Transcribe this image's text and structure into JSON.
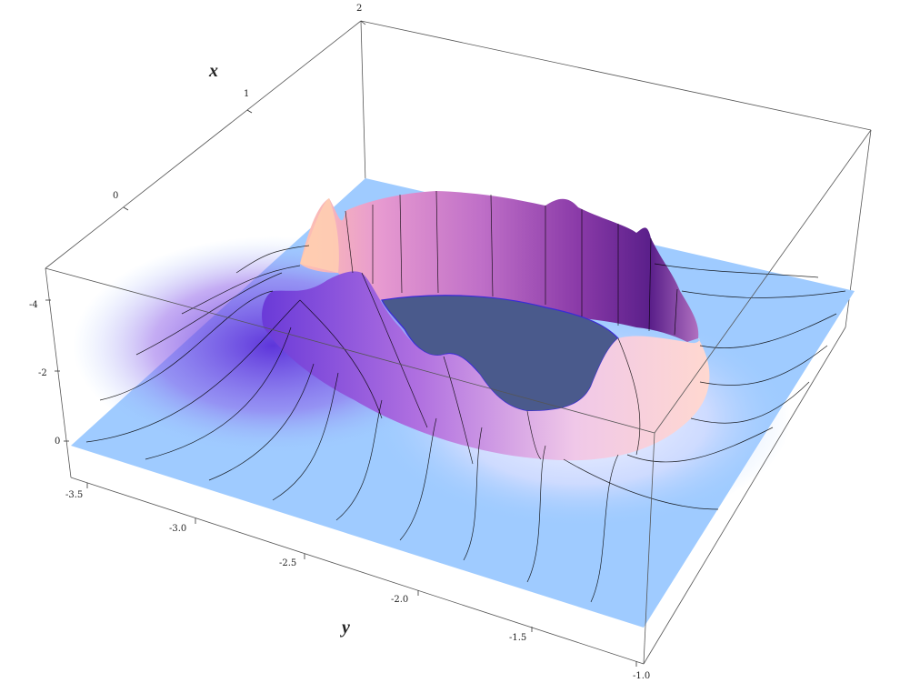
{
  "chart_data": {
    "type": "surface3d",
    "xlabel": "x",
    "ylabel": "y",
    "x_ticks": [
      "0",
      "1",
      "2"
    ],
    "y_ticks": [
      "-3.5",
      "-3.0",
      "-2.5",
      "-2.0",
      "-1.5",
      "-1.0"
    ],
    "z_ticks": [
      "0",
      "-2",
      "-4"
    ],
    "ylim": [
      -3.5,
      -1.0
    ],
    "zlim": [
      -5,
      0
    ],
    "surface": "ring-shaped ridge around a clipped flat hole, flat base plane elsewhere",
    "colors": {
      "base_plane": "#9fcbff",
      "ridge_dark": "#5a1fa8",
      "ridge_light": "#ffd6c8",
      "hole_cap": "#4a5a8c"
    }
  }
}
